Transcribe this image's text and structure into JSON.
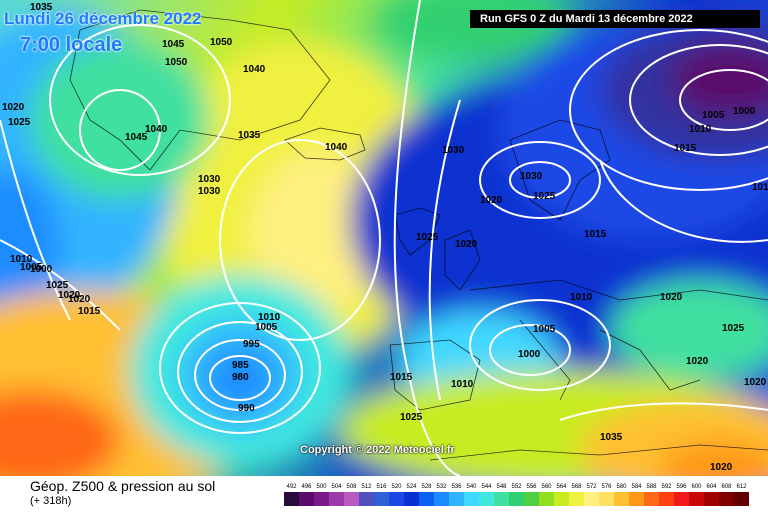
{
  "header": {
    "date": "Lundi 26 décembre 2022",
    "local_time": "7:00 locale",
    "run": "Run GFS 0 Z du Mardi 13 décembre 2022"
  },
  "copyright": "Copyright © 2022 Meteociel.fr",
  "legend": {
    "title": "Géop. Z500 & pression au sol",
    "subtitle": "(+ 318h)",
    "scale": {
      "values": [
        "492",
        "496",
        "500",
        "504",
        "508",
        "512",
        "516",
        "520",
        "524",
        "528",
        "532",
        "536",
        "540",
        "544",
        "548",
        "552",
        "556",
        "560",
        "564",
        "568",
        "572",
        "576",
        "580",
        "584",
        "588",
        "592",
        "596",
        "600",
        "604",
        "608",
        "612"
      ],
      "colors": [
        "#2a0a3c",
        "#5a0a6a",
        "#7a1a8a",
        "#9a3aa8",
        "#b85ac0",
        "#5050c0",
        "#3060d8",
        "#1a48e6",
        "#0a30d0",
        "#0a60f0",
        "#1a8cff",
        "#30b4ff",
        "#40d8ff",
        "#40e8e0",
        "#40e0a0",
        "#30d070",
        "#50d040",
        "#90e020",
        "#c8ec20",
        "#f0f040",
        "#fff080",
        "#ffe060",
        "#ffc030",
        "#ff9818",
        "#ff6818",
        "#ff4010",
        "#f01818",
        "#c80808",
        "#a00000",
        "#800000",
        "#600000"
      ]
    }
  },
  "pressure_labels": [
    {
      "text": "1035"
    },
    {
      "text": "1045"
    },
    {
      "text": "1050"
    },
    {
      "text": "1050"
    },
    {
      "text": "1040"
    },
    {
      "text": "1020"
    },
    {
      "text": "1025"
    },
    {
      "text": "1045"
    },
    {
      "text": "1040"
    },
    {
      "text": "1035"
    },
    {
      "text": "1040"
    },
    {
      "text": "1030"
    },
    {
      "text": "1030"
    },
    {
      "text": "1030"
    },
    {
      "text": "1020"
    },
    {
      "text": "1030"
    },
    {
      "text": "1025"
    },
    {
      "text": "1025"
    },
    {
      "text": "1020"
    },
    {
      "text": "1015"
    },
    {
      "text": "1005"
    },
    {
      "text": "1000"
    },
    {
      "text": "1010"
    },
    {
      "text": "1015"
    },
    {
      "text": "1010"
    },
    {
      "text": "1010"
    },
    {
      "text": "1005"
    },
    {
      "text": "1000"
    },
    {
      "text": "1025"
    },
    {
      "text": "1020"
    },
    {
      "text": "1020"
    },
    {
      "text": "1015"
    },
    {
      "text": "1010"
    },
    {
      "text": "1005"
    },
    {
      "text": "995"
    },
    {
      "text": "985"
    },
    {
      "text": "980"
    },
    {
      "text": "990"
    },
    {
      "text": "1000"
    },
    {
      "text": "1005"
    },
    {
      "text": "1010"
    },
    {
      "text": "1015"
    },
    {
      "text": "1025"
    },
    {
      "text": "1020"
    },
    {
      "text": "1020"
    },
    {
      "text": "1025"
    },
    {
      "text": "1020"
    },
    {
      "text": "1035"
    },
    {
      "text": "1020"
    },
    {
      "text": "1010"
    }
  ]
}
